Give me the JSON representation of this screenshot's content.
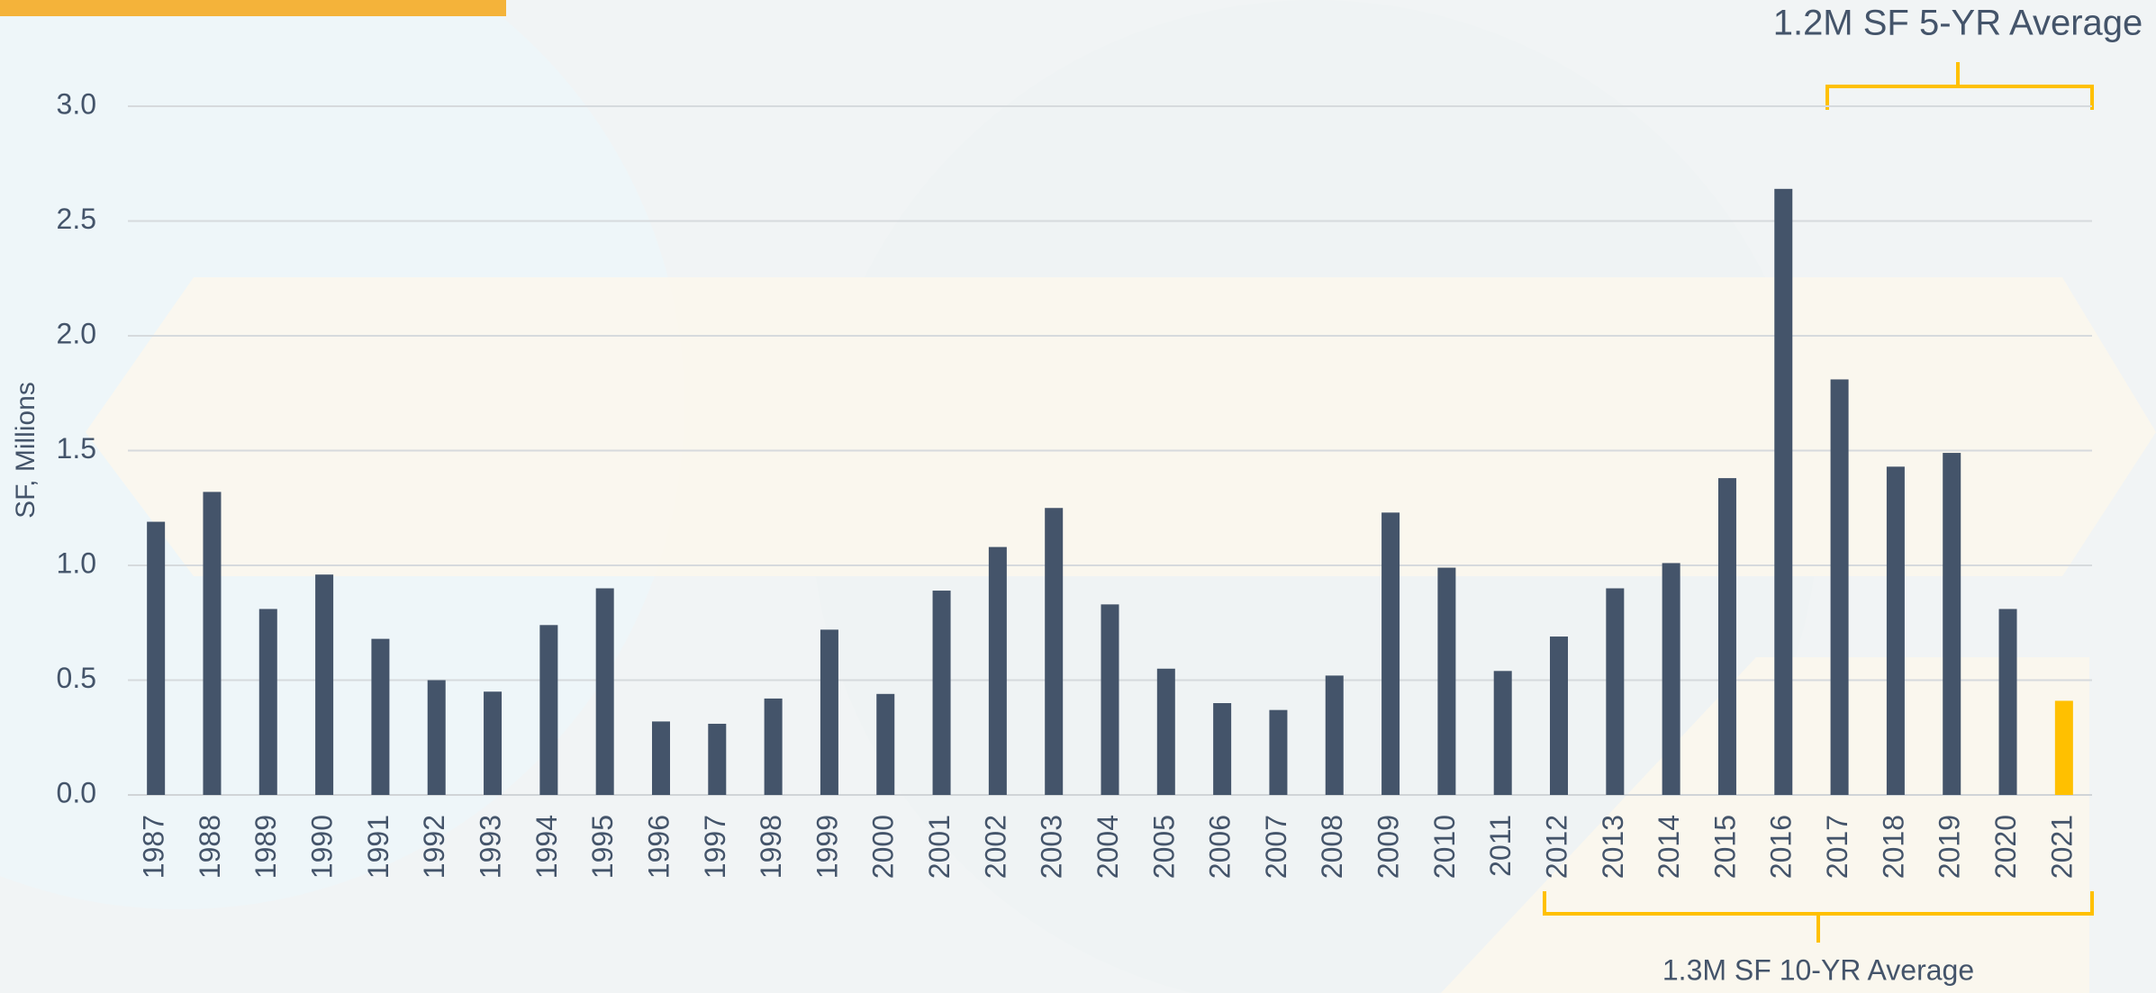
{
  "chart_data": {
    "type": "bar",
    "y_label": "SF, Millions",
    "categories": [
      "1987",
      "1988",
      "1989",
      "1990",
      "1991",
      "1992",
      "1993",
      "1994",
      "1995",
      "1996",
      "1997",
      "1998",
      "1999",
      "2000",
      "2001",
      "2002",
      "2003",
      "2004",
      "2005",
      "2006",
      "2007",
      "2008",
      "2009",
      "2010",
      "2011",
      "2012",
      "2013",
      "2014",
      "2015",
      "2016",
      "2017",
      "2018",
      "2019",
      "2020",
      "2021"
    ],
    "values": [
      1.19,
      1.32,
      0.81,
      0.96,
      0.68,
      0.5,
      0.45,
      0.74,
      0.9,
      0.32,
      0.31,
      0.42,
      0.72,
      0.44,
      0.89,
      1.08,
      1.25,
      0.83,
      0.55,
      0.4,
      0.37,
      0.52,
      1.23,
      0.99,
      0.54,
      0.69,
      0.9,
      1.01,
      1.38,
      2.64,
      1.81,
      1.43,
      1.49,
      0.81,
      0.41
    ],
    "colors": [
      "#44546a",
      "#44546a",
      "#44546a",
      "#44546a",
      "#44546a",
      "#44546a",
      "#44546a",
      "#44546a",
      "#44546a",
      "#44546a",
      "#44546a",
      "#44546a",
      "#44546a",
      "#44546a",
      "#44546a",
      "#44546a",
      "#44546a",
      "#44546a",
      "#44546a",
      "#44546a",
      "#44546a",
      "#44546a",
      "#44546a",
      "#44546a",
      "#44546a",
      "#44546a",
      "#44546a",
      "#44546a",
      "#44546a",
      "#44546a",
      "#44546a",
      "#44546a",
      "#44546a",
      "#44546a",
      "#ffc000"
    ],
    "ylim": [
      0,
      3.0
    ],
    "yticks": [
      {
        "value": 0,
        "label": "0.0"
      },
      0.5,
      {
        "value": 1,
        "label": "1.0"
      },
      1.5,
      {
        "value": 2,
        "label": "2.0"
      },
      2.5,
      {
        "value": 3,
        "label": "3.0"
      }
    ],
    "grid": true,
    "annotations": [
      "1.2M SF 5-YR Average",
      "1.3M SF 10-YR Average"
    ]
  }
}
